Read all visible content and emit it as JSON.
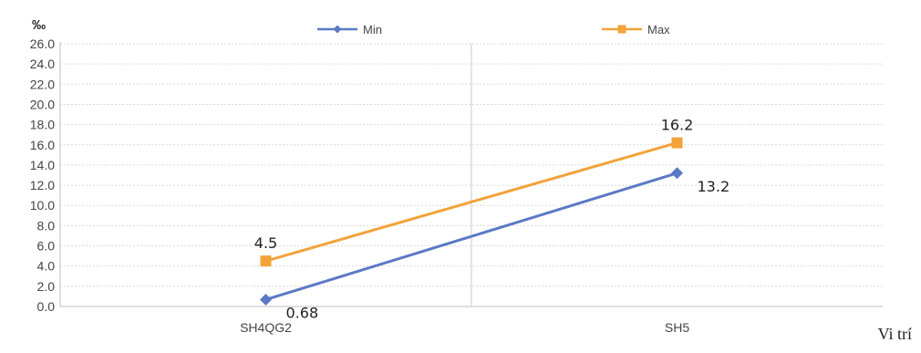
{
  "chart_data": {
    "type": "line",
    "unit_label": "‰",
    "xlabel": "Vi trí",
    "ylabel": "",
    "categories": [
      "SH4QG2",
      "SH5"
    ],
    "ylim": [
      0,
      26
    ],
    "y_tick_step": 2,
    "y_tick_labels": [
      "0.0",
      "2.0",
      "4.0",
      "6.0",
      "8.0",
      "10.0",
      "12.0",
      "14.0",
      "16.0",
      "18.0",
      "20.0",
      "22.0",
      "24.0",
      "26.0"
    ],
    "grid": true,
    "legend_position": "top",
    "series": [
      {
        "name": "Min",
        "values": [
          0.68,
          13.2
        ],
        "labels": [
          "0.68",
          "13.2"
        ],
        "color": "#5b79c4",
        "marker": "diamond"
      },
      {
        "name": "Max",
        "values": [
          4.5,
          16.2
        ],
        "labels": [
          "4.5",
          "16.2"
        ],
        "color": "#f2a33a",
        "marker": "square"
      }
    ]
  }
}
